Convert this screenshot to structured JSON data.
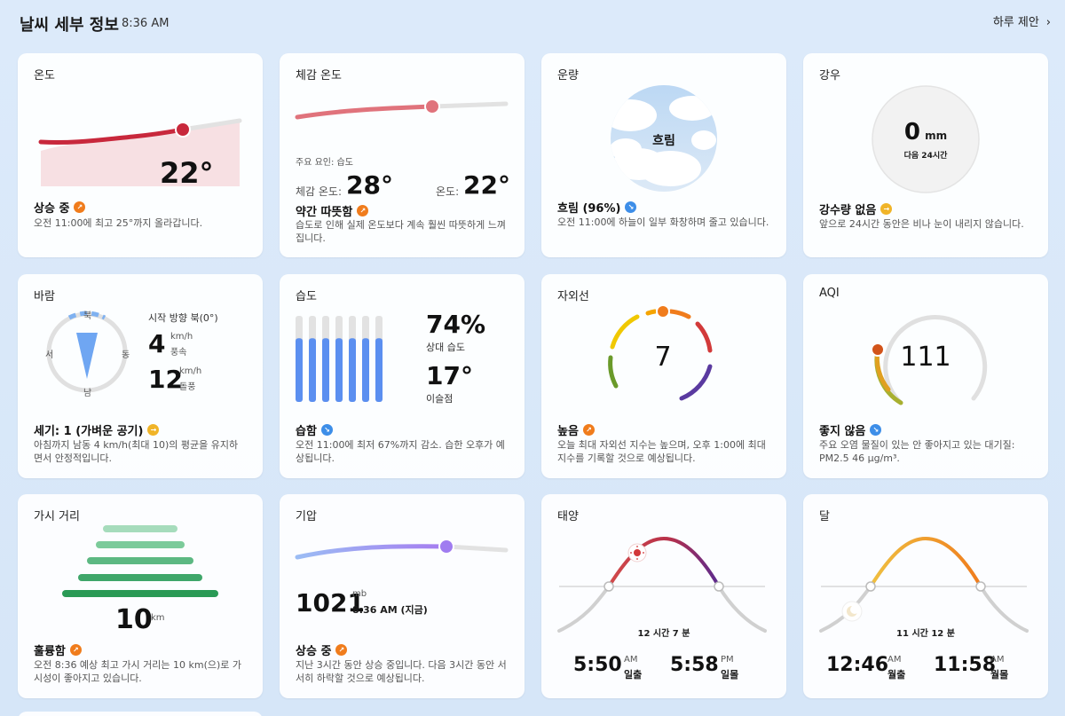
{
  "header": {
    "title": "날씨 세부 정보",
    "time": "8:36 AM",
    "daily_link": "하루 제안",
    "chevron": "chevron-right-icon"
  },
  "temperature": {
    "title": "온도",
    "value": "22°",
    "status": "상승 중",
    "desc": "오전 11:00에 최고 25°까지 올라갑니다."
  },
  "feels_like": {
    "title": "체감 온도",
    "main_factor": "주요 요인: 습도",
    "feels_label": "체감 온도:",
    "feels_value": "28°",
    "temp_label": "온도:",
    "temp_value": "22°",
    "status": "약간 따뜻함",
    "desc": "습도로 인해 실제 온도보다 계속 훨씬 따뜻하게 느껴집니다."
  },
  "cloud": {
    "title": "운량",
    "center": "흐림",
    "status": "흐림 (96%)",
    "desc": "오전 11:00에 하늘이 일부 화창하며 줄고 있습니다."
  },
  "rain": {
    "title": "강우",
    "value": "0",
    "unit": "mm",
    "period": "다음 24시간",
    "status": "강수량 없음",
    "desc": "앞으로 24시간 동안은 비나 눈이 내리지 않습니다."
  },
  "wind": {
    "title": "바람",
    "north": "북",
    "east": "동",
    "south": "남",
    "west": "서",
    "direction_label": "시작 방향 북(0°)",
    "speed": "4",
    "speed_unit": "km/h",
    "speed_label": "풍속",
    "gust": "12",
    "gust_unit": "km/h",
    "gust_label": "돌풍",
    "status": "세기: 1 (가벼운 공기)",
    "desc": "아침까지 남동 4 km/h(최대 10)의 평균을 유지하면서 안정적입니다."
  },
  "humidity": {
    "title": "습도",
    "value": "74%",
    "value_label": "상대 습도",
    "dew": "17°",
    "dew_label": "이슬점",
    "status": "습함",
    "desc": "오전 11:00에 최저 67%까지 감소. 습한 오후가 예상됩니다.",
    "level": 0.74
  },
  "uv": {
    "title": "자외선",
    "value": "7",
    "status": "높음",
    "desc": "오늘 최대 자외선 지수는 높으며, 오후 1:00에 최대 지수를 기록할 것으로 예상됩니다."
  },
  "aqi": {
    "title": "AQI",
    "value": "111",
    "status": "좋지 않음",
    "desc": "주요 오염 물질이 있는 안 좋아지고 있는 대기질: PM2.5 46 μg/m³."
  },
  "visibility": {
    "title": "가시 거리",
    "value": "10",
    "unit": "km",
    "status": "훌륭함",
    "desc": "오전 8:36 예상 최고 가시 거리는 10 km(으)로 가시성이 좋아지고 있습니다."
  },
  "pressure": {
    "title": "기압",
    "value": "1021",
    "unit": "mb",
    "time": "8:36 AM (지금)",
    "status": "상승 중",
    "desc": "지난 3시간 동안 상승 중입니다. 다음 3시간 동안 서서히 하락할 것으로 예상됩니다."
  },
  "sun": {
    "title": "태양",
    "duration": "12 시간 7 분",
    "rise": "5:50",
    "rise_ampm": "AM",
    "rise_label": "일출",
    "set": "5:58",
    "set_ampm": "PM",
    "set_label": "일몰"
  },
  "moon": {
    "title": "달",
    "duration": "11 시간 12 분",
    "rise": "12:46",
    "rise_ampm": "AM",
    "rise_label": "월출",
    "set": "11:58",
    "set_ampm": "AM",
    "set_label": "월몰"
  },
  "colors": {
    "accent_orange": "#f07c1c",
    "accent_blue": "#3d8ee8",
    "temp_red": "#c8283c",
    "humidity_blue": "#5b8ff0",
    "pressure_purple": "#a07cf0"
  }
}
